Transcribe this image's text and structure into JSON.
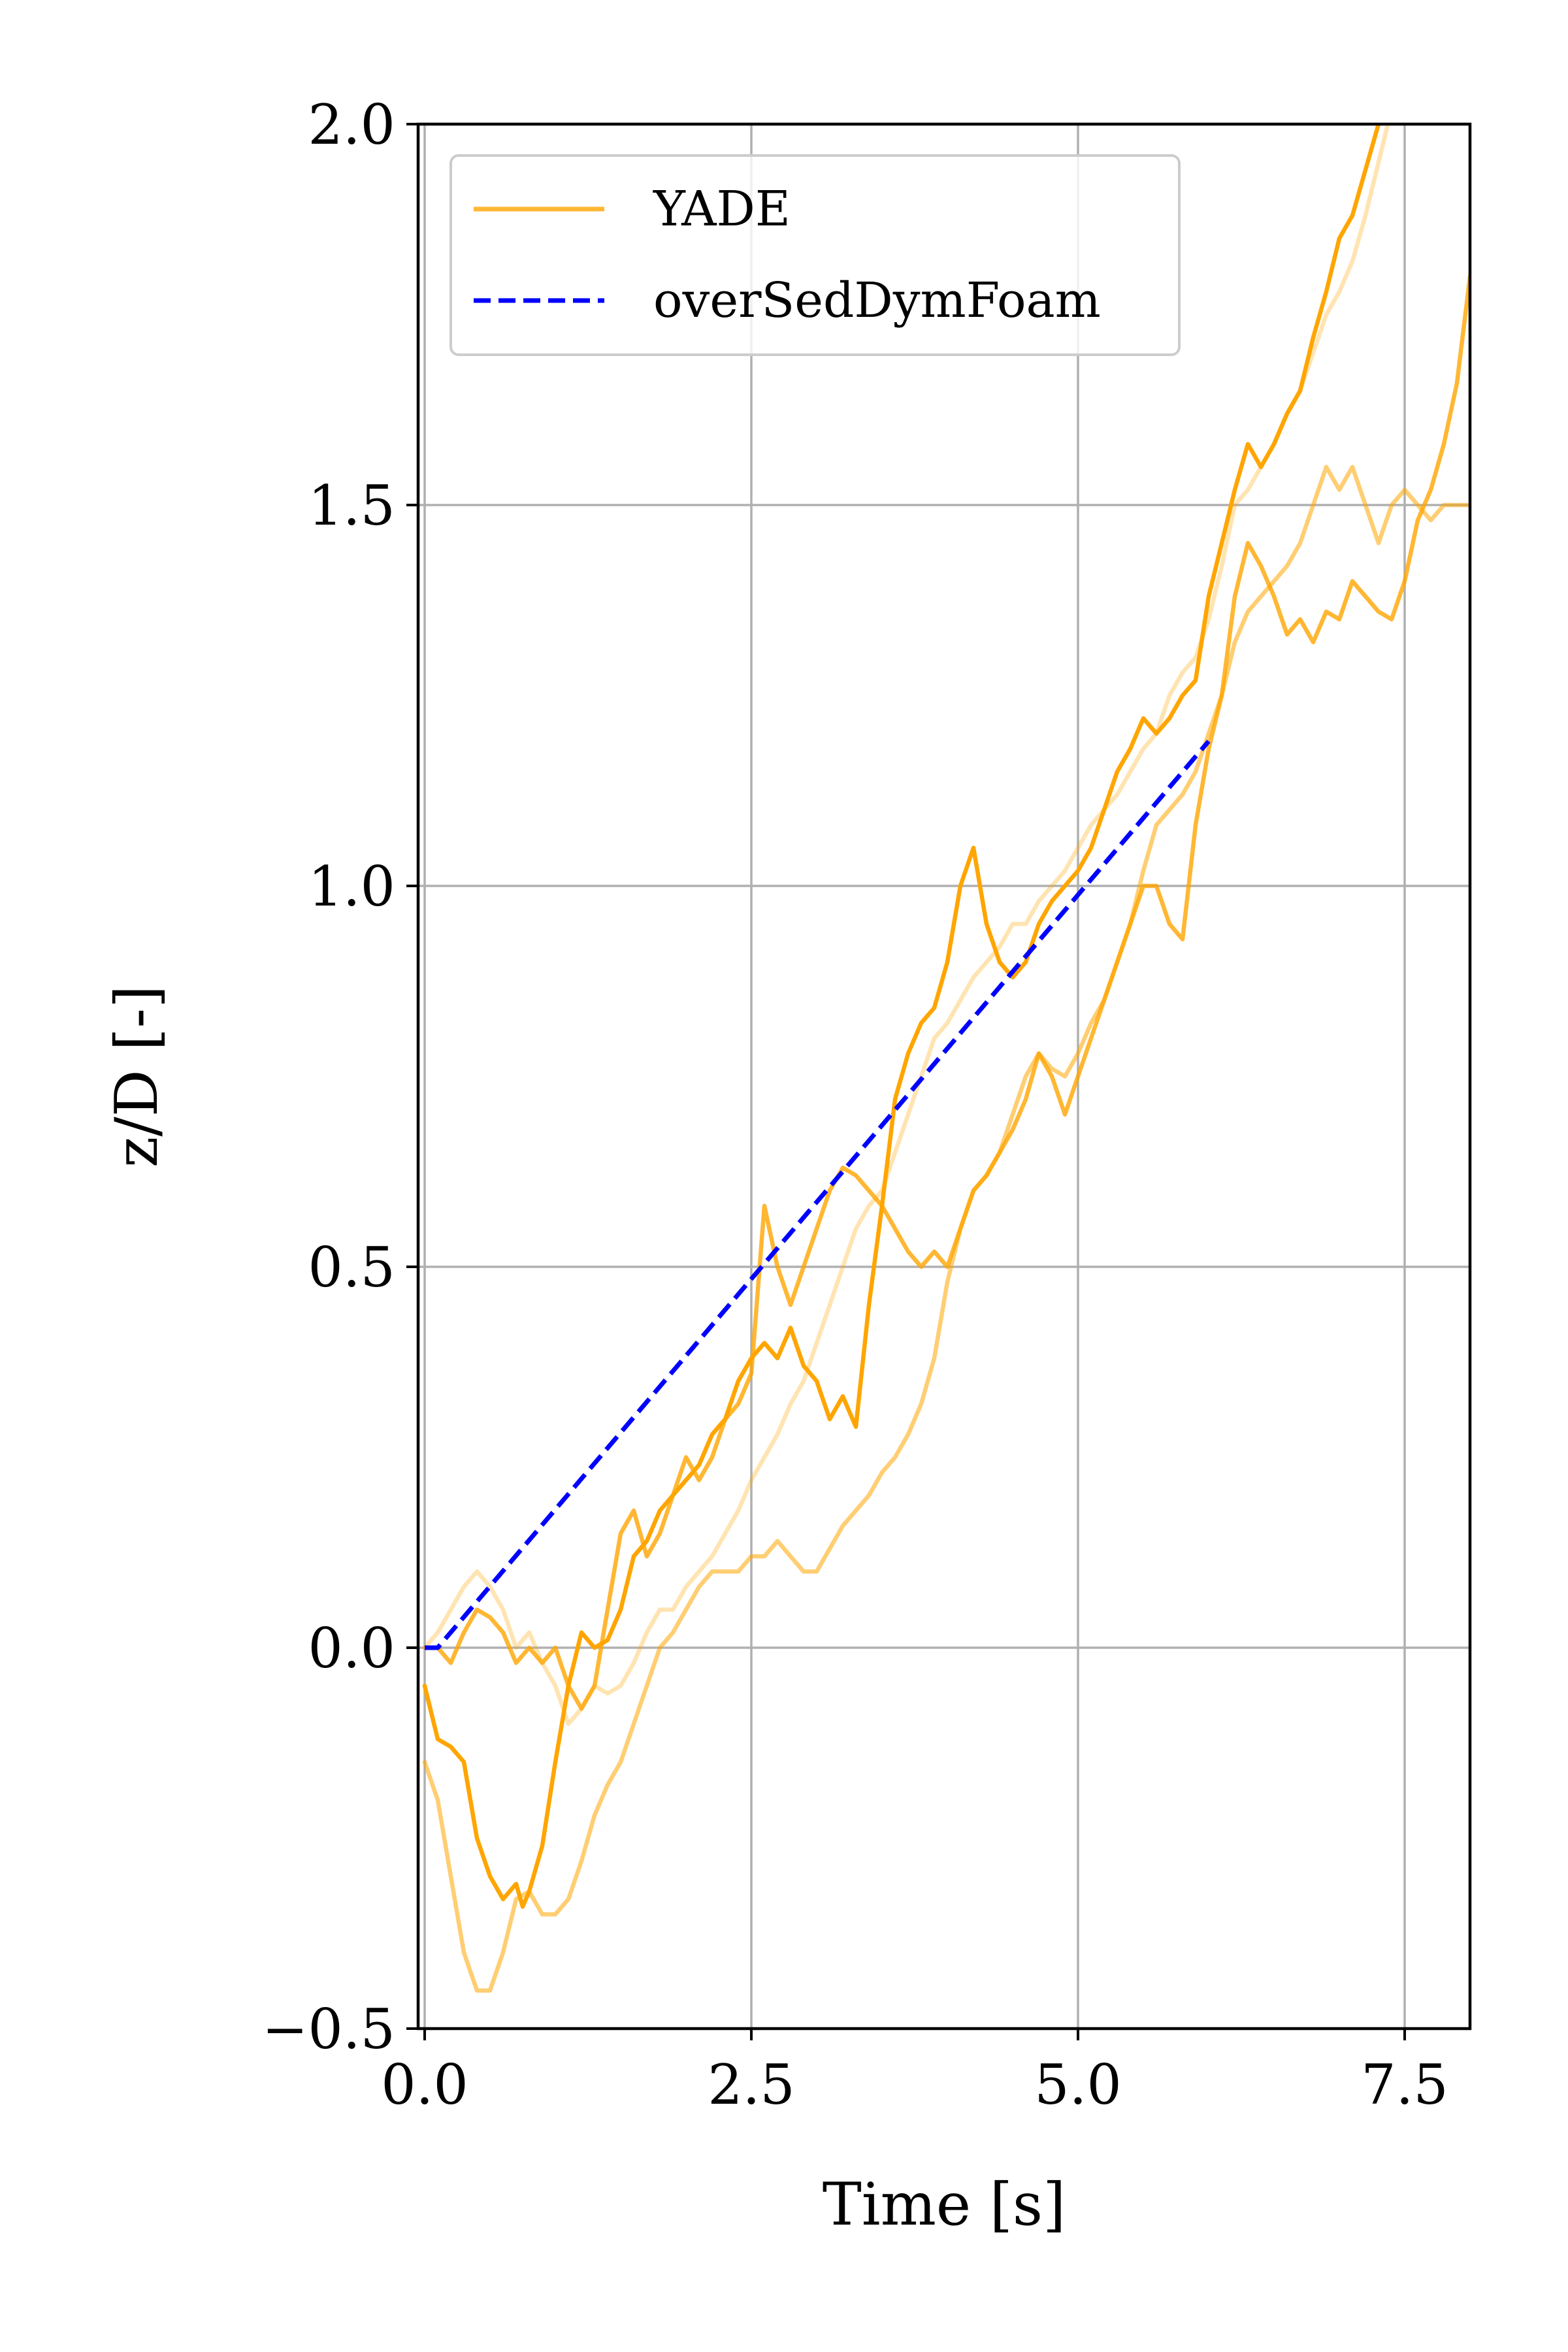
{
  "chart_data": {
    "type": "line",
    "title": "",
    "xlabel": "Time [s]",
    "ylabel": "z/D [-]",
    "xlim": [
      -0.05,
      8.0
    ],
    "ylim": [
      -0.5,
      2.0
    ],
    "xticks": [
      0.0,
      2.5,
      5.0,
      7.5
    ],
    "yticks": [
      -0.5,
      0.0,
      0.5,
      1.0,
      1.5,
      2.0
    ],
    "xtick_labels": [
      "0.0",
      "2.5",
      "5.0",
      "7.5"
    ],
    "ytick_labels": [
      "−0.5",
      "0.0",
      "0.5",
      "1.0",
      "1.5",
      "2.0"
    ],
    "grid": true,
    "legend_position": "upper-left",
    "legend": [
      {
        "label": "YADE",
        "color": "#FFA500",
        "style": "solid"
      },
      {
        "label": "overSedDymFoam",
        "color": "#0000FF",
        "style": "dashed"
      }
    ],
    "series": [
      {
        "color": "#FFA500",
        "opacity": 1.0,
        "style": "solid",
        "x": [
          0.0,
          0.1,
          0.2,
          0.3,
          0.4,
          0.5,
          0.6,
          0.7,
          0.75,
          0.8,
          0.9,
          1.0,
          1.1,
          1.2,
          1.3,
          1.4,
          1.5,
          1.6,
          1.7,
          1.8,
          1.9,
          2.0,
          2.1,
          2.2,
          2.3,
          2.4,
          2.5,
          2.6,
          2.7,
          2.8,
          2.9,
          3.0,
          3.1,
          3.2,
          3.3,
          3.4,
          3.5,
          3.6,
          3.7,
          3.8,
          3.9,
          4.0,
          4.1,
          4.2,
          4.25,
          4.3,
          4.4,
          4.5,
          4.6,
          4.7,
          4.8,
          4.9,
          5.0,
          5.1,
          5.2,
          5.3,
          5.4,
          5.5,
          5.6,
          5.7,
          5.8,
          5.9,
          6.0,
          6.1,
          6.2,
          6.3,
          6.4,
          6.5,
          6.6,
          6.7,
          6.8,
          6.9,
          7.0,
          7.1,
          7.2,
          7.3,
          7.4
        ],
        "y": [
          -0.05,
          -0.12,
          -0.13,
          -0.15,
          -0.25,
          -0.3,
          -0.33,
          -0.31,
          -0.34,
          -0.32,
          -0.26,
          -0.15,
          -0.05,
          0.02,
          0.0,
          0.01,
          0.05,
          0.12,
          0.14,
          0.18,
          0.2,
          0.22,
          0.24,
          0.28,
          0.3,
          0.35,
          0.38,
          0.4,
          0.38,
          0.42,
          0.37,
          0.35,
          0.3,
          0.33,
          0.29,
          0.45,
          0.58,
          0.72,
          0.78,
          0.82,
          0.84,
          0.9,
          1.0,
          1.05,
          1.0,
          0.95,
          0.9,
          0.88,
          0.9,
          0.95,
          0.98,
          1.0,
          1.02,
          1.05,
          1.1,
          1.15,
          1.18,
          1.22,
          1.2,
          1.22,
          1.25,
          1.27,
          1.38,
          1.45,
          1.52,
          1.58,
          1.55,
          1.58,
          1.62,
          1.65,
          1.72,
          1.78,
          1.85,
          1.88,
          1.94,
          2.0,
          2.05
        ]
      },
      {
        "color": "#FFA500",
        "opacity": 0.55,
        "style": "solid",
        "x": [
          0.0,
          0.1,
          0.2,
          0.3,
          0.4,
          0.5,
          0.6,
          0.7,
          0.8,
          0.9,
          1.0,
          1.1,
          1.2,
          1.3,
          1.4,
          1.5,
          1.6,
          1.7,
          1.8,
          1.9,
          2.0,
          2.1,
          2.2,
          2.3,
          2.4,
          2.5,
          2.6,
          2.7,
          2.8,
          2.9,
          3.0,
          3.1,
          3.2,
          3.3,
          3.4,
          3.5,
          3.6,
          3.7,
          3.8,
          3.9,
          4.0,
          4.1,
          4.2,
          4.3,
          4.4,
          4.5,
          4.6,
          4.7,
          4.8,
          4.9,
          5.0,
          5.1,
          5.2,
          5.3,
          5.4,
          5.5,
          5.6,
          5.7,
          5.8,
          5.9,
          6.0,
          6.1,
          6.2,
          6.3,
          6.4,
          6.5,
          6.6,
          6.7,
          6.8,
          6.9,
          7.0,
          7.1,
          7.2,
          7.3,
          7.4,
          7.5,
          7.6,
          7.7,
          7.8,
          7.9,
          8.0
        ],
        "y": [
          -0.15,
          -0.2,
          -0.3,
          -0.4,
          -0.45,
          -0.45,
          -0.4,
          -0.33,
          -0.32,
          -0.35,
          -0.35,
          -0.33,
          -0.28,
          -0.22,
          -0.18,
          -0.15,
          -0.1,
          -0.05,
          0.0,
          0.02,
          0.05,
          0.08,
          0.1,
          0.1,
          0.1,
          0.12,
          0.12,
          0.14,
          0.12,
          0.1,
          0.1,
          0.13,
          0.16,
          0.18,
          0.2,
          0.23,
          0.25,
          0.28,
          0.32,
          0.38,
          0.48,
          0.55,
          0.6,
          0.62,
          0.65,
          0.7,
          0.75,
          0.78,
          0.76,
          0.75,
          0.78,
          0.82,
          0.85,
          0.9,
          0.95,
          1.02,
          1.08,
          1.1,
          1.12,
          1.15,
          1.2,
          1.25,
          1.32,
          1.36,
          1.38,
          1.4,
          1.42,
          1.45,
          1.5,
          1.55,
          1.52,
          1.55,
          1.5,
          1.45,
          1.5,
          1.52,
          1.5,
          1.48,
          1.5,
          1.5,
          1.5
        ]
      },
      {
        "color": "#FFA500",
        "opacity": 0.8,
        "style": "solid",
        "x": [
          0.0,
          0.1,
          0.2,
          0.3,
          0.4,
          0.5,
          0.6,
          0.7,
          0.8,
          0.9,
          1.0,
          1.1,
          1.2,
          1.3,
          1.4,
          1.5,
          1.6,
          1.7,
          1.8,
          1.9,
          2.0,
          2.1,
          2.2,
          2.3,
          2.4,
          2.5,
          2.6,
          2.7,
          2.8,
          2.9,
          3.0,
          3.1,
          3.2,
          3.3,
          3.4,
          3.5,
          3.6,
          3.7,
          3.8,
          3.9,
          4.0,
          4.1,
          4.2,
          4.3,
          4.4,
          4.5,
          4.6,
          4.7,
          4.8,
          4.9,
          5.0,
          5.1,
          5.2,
          5.3,
          5.4,
          5.5,
          5.6,
          5.7,
          5.8,
          5.9,
          6.0,
          6.1,
          6.2,
          6.3,
          6.4,
          6.5,
          6.6,
          6.7,
          6.8,
          6.9,
          7.0,
          7.1,
          7.2,
          7.3,
          7.4,
          7.5,
          7.6,
          7.7,
          7.8,
          7.9,
          8.0
        ],
        "y": [
          0.0,
          0.0,
          -0.02,
          0.02,
          0.05,
          0.04,
          0.02,
          -0.02,
          0.0,
          -0.02,
          0.0,
          -0.05,
          -0.08,
          -0.05,
          0.05,
          0.15,
          0.18,
          0.12,
          0.15,
          0.2,
          0.25,
          0.22,
          0.25,
          0.3,
          0.32,
          0.36,
          0.58,
          0.5,
          0.45,
          0.5,
          0.55,
          0.6,
          0.63,
          0.62,
          0.6,
          0.58,
          0.55,
          0.52,
          0.5,
          0.52,
          0.5,
          0.55,
          0.6,
          0.62,
          0.65,
          0.68,
          0.72,
          0.78,
          0.75,
          0.7,
          0.75,
          0.8,
          0.85,
          0.9,
          0.95,
          1.0,
          1.0,
          0.95,
          0.93,
          1.08,
          1.18,
          1.25,
          1.38,
          1.45,
          1.42,
          1.38,
          1.33,
          1.35,
          1.32,
          1.36,
          1.35,
          1.4,
          1.38,
          1.36,
          1.35,
          1.4,
          1.48,
          1.52,
          1.58,
          1.66,
          1.8
        ]
      },
      {
        "color": "#FFA500",
        "opacity": 0.3,
        "style": "solid",
        "x": [
          0.0,
          0.1,
          0.2,
          0.3,
          0.4,
          0.5,
          0.6,
          0.7,
          0.8,
          0.9,
          1.0,
          1.1,
          1.2,
          1.3,
          1.4,
          1.5,
          1.6,
          1.7,
          1.8,
          1.9,
          2.0,
          2.1,
          2.2,
          2.3,
          2.4,
          2.5,
          2.6,
          2.7,
          2.8,
          2.9,
          3.0,
          3.1,
          3.2,
          3.3,
          3.4,
          3.5,
          3.6,
          3.7,
          3.8,
          3.9,
          4.0,
          4.1,
          4.2,
          4.3,
          4.4,
          4.5,
          4.6,
          4.7,
          4.8,
          4.9,
          5.0,
          5.1,
          5.2,
          5.3,
          5.4,
          5.5,
          5.6,
          5.7,
          5.8,
          5.9,
          6.0,
          6.1,
          6.2,
          6.3,
          6.4,
          6.5,
          6.6,
          6.7,
          6.8,
          6.9,
          7.0,
          7.1,
          7.2,
          7.3,
          7.4
        ],
        "y": [
          0.0,
          0.02,
          0.05,
          0.08,
          0.1,
          0.08,
          0.05,
          0.0,
          0.02,
          -0.02,
          -0.05,
          -0.1,
          -0.08,
          -0.05,
          -0.06,
          -0.05,
          -0.02,
          0.02,
          0.05,
          0.05,
          0.08,
          0.1,
          0.12,
          0.15,
          0.18,
          0.22,
          0.25,
          0.28,
          0.32,
          0.35,
          0.4,
          0.45,
          0.5,
          0.55,
          0.58,
          0.6,
          0.65,
          0.7,
          0.75,
          0.8,
          0.82,
          0.85,
          0.88,
          0.9,
          0.92,
          0.95,
          0.95,
          0.98,
          1.0,
          1.02,
          1.05,
          1.08,
          1.1,
          1.12,
          1.15,
          1.18,
          1.2,
          1.25,
          1.28,
          1.3,
          1.35,
          1.42,
          1.5,
          1.52,
          1.55,
          1.58,
          1.62,
          1.65,
          1.7,
          1.75,
          1.78,
          1.82,
          1.88,
          1.95,
          2.02
        ]
      },
      {
        "color": "#0000FF",
        "opacity": 1.0,
        "style": "dashed",
        "x": [
          0.0,
          0.1,
          6.0
        ],
        "y": [
          0.0,
          0.0,
          1.19
        ]
      }
    ]
  }
}
